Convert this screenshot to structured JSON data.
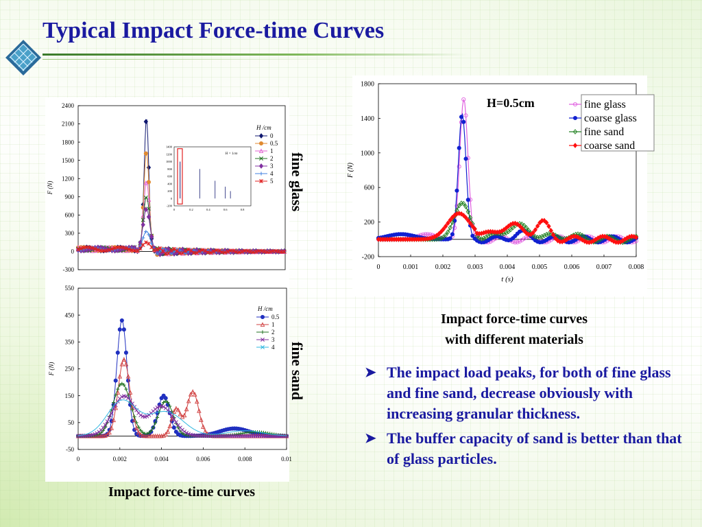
{
  "slide": {
    "title": "Typical Impact Force-time Curves",
    "label_glass": "fine glass",
    "label_sand": "fine sand",
    "caption_left": "Impact force-time curves",
    "caption_right_1": "Impact force-time curves",
    "caption_right_2": "with different materials",
    "bullets": [
      "The impact load peaks, for both of fine glass and fine sand, decrease obviously with increasing granular thickness.",
      "The buffer capacity of sand is better than that of glass particles."
    ],
    "colors": {
      "title": "#1a1aa0",
      "accent_green": "#3a7a2a"
    },
    "icons": {
      "logo": "lattice-diamond-icon",
      "bullet": "arrow-bullet-icon"
    }
  },
  "chart_data": [
    {
      "id": "glass",
      "type": "line",
      "xlabel": "",
      "ylabel": "F (N)",
      "legend_title": "H /cm",
      "xlim": [
        0,
        0.01
      ],
      "ylim": [
        -300,
        2400
      ],
      "yticks": [
        -300,
        0,
        300,
        600,
        900,
        1200,
        1500,
        1800,
        2100,
        2400
      ],
      "legend_position": "right",
      "series": [
        {
          "name": "0",
          "color": "#101870",
          "marker": "diamond",
          "peak": 2200,
          "width": 0.00016
        },
        {
          "name": "0.5",
          "color": "#e08a30",
          "marker": "circle",
          "peak": 1650,
          "width": 0.00018
        },
        {
          "name": "1",
          "color": "#e060d0",
          "marker": "triangle",
          "peak": 1150,
          "width": 0.0002
        },
        {
          "name": "2",
          "color": "#207020",
          "marker": "x",
          "peak": 900,
          "width": 0.00022
        },
        {
          "name": "3",
          "color": "#8030a0",
          "marker": "diamond",
          "peak": 700,
          "width": 0.00024
        },
        {
          "name": "4",
          "color": "#4080e0",
          "marker": "plus",
          "peak": 330,
          "width": 0.00026
        },
        {
          "name": "5",
          "color": "#e02020",
          "marker": "star",
          "peak": 150,
          "width": 0.00028
        }
      ],
      "inset": {
        "annotation": "H = 1cm",
        "yticks": [
          -200,
          0,
          200,
          400,
          600,
          800,
          1000,
          1200,
          1400
        ],
        "xticks": [
          0,
          0.2,
          0.4,
          0.6,
          0.8
        ],
        "peaks": [
          [
            0.3,
            800
          ],
          [
            0.48,
            480
          ],
          [
            0.6,
            320
          ],
          [
            0.66,
            200
          ]
        ]
      }
    },
    {
      "id": "sand",
      "type": "line",
      "xlabel": "",
      "ylabel": "F (N)",
      "legend_title": "H /cm",
      "xlim": [
        0,
        0.01
      ],
      "ylim": [
        -50,
        550
      ],
      "xticks": [
        0,
        0.002,
        0.004,
        0.006,
        0.008,
        0.01
      ],
      "yticks": [
        -50,
        50,
        150,
        250,
        350,
        450,
        550
      ],
      "legend_position": "right",
      "series": [
        {
          "name": "0.5",
          "color": "#2030c0",
          "marker": "circle",
          "peaks": [
            [
              0.0021,
              430,
              0.00035
            ],
            [
              0.0041,
              150,
              0.0004
            ],
            [
              0.0075,
              28,
              0.001
            ]
          ]
        },
        {
          "name": "1",
          "color": "#d04040",
          "marker": "triangle",
          "peaks": [
            [
              0.0022,
              285,
              0.0004
            ],
            [
              0.0047,
              100,
              0.0003
            ],
            [
              0.0055,
              165,
              0.0004
            ]
          ]
        },
        {
          "name": "2",
          "color": "#207020",
          "marker": "plus",
          "peaks": [
            [
              0.0021,
              195,
              0.0006
            ],
            [
              0.0042,
              130,
              0.0005
            ],
            [
              0.0085,
              15,
              0.001
            ]
          ]
        },
        {
          "name": "3",
          "color": "#8030a0",
          "marker": "x",
          "peaks": [
            [
              0.0022,
              148,
              0.0008
            ],
            [
              0.004,
              110,
              0.0008
            ]
          ]
        },
        {
          "name": "4",
          "color": "#30b8e0",
          "marker": "none",
          "peaks": [
            [
              0.0021,
              130,
              0.001
            ],
            [
              0.0042,
              90,
              0.0012
            ],
            [
              0.008,
              20,
              0.0012
            ]
          ]
        }
      ]
    },
    {
      "id": "materials",
      "type": "line",
      "xlabel": "t (s)",
      "ylabel": "F (N)",
      "annotation": "H=0.5cm",
      "xlim": [
        0,
        0.008
      ],
      "ylim": [
        -200,
        1800
      ],
      "xticks": [
        0,
        0.001,
        0.002,
        0.003,
        0.004,
        0.005,
        0.006,
        0.007,
        0.008
      ],
      "yticks": [
        -200,
        200,
        600,
        1000,
        1400,
        1800
      ],
      "legend_position": "top-right",
      "series": [
        {
          "name": "fine glass",
          "color": "#e060e0",
          "marker": "circle-open",
          "peaks": [
            [
              0.00265,
              1620,
              0.00018
            ],
            [
              0.0015,
              60,
              0.0004
            ]
          ]
        },
        {
          "name": "coarse glass",
          "color": "#1020d0",
          "marker": "circle",
          "peaks": [
            [
              0.0026,
              1450,
              0.00017
            ],
            [
              0.0007,
              60,
              0.0006
            ],
            [
              0.0044,
              80,
              0.0003
            ]
          ]
        },
        {
          "name": "fine sand",
          "color": "#208020",
          "marker": "diamond-open",
          "peaks": [
            [
              0.0026,
              420,
              0.00035
            ],
            [
              0.0043,
              150,
              0.0006
            ],
            [
              0.0058,
              40,
              0.0006
            ]
          ]
        },
        {
          "name": "coarse sand",
          "color": "#ff1010",
          "marker": "diamond",
          "peaks": [
            [
              0.0025,
              300,
              0.0005
            ],
            [
              0.0041,
              160,
              0.0006
            ],
            [
              0.0051,
              180,
              0.0003
            ]
          ]
        }
      ]
    }
  ]
}
